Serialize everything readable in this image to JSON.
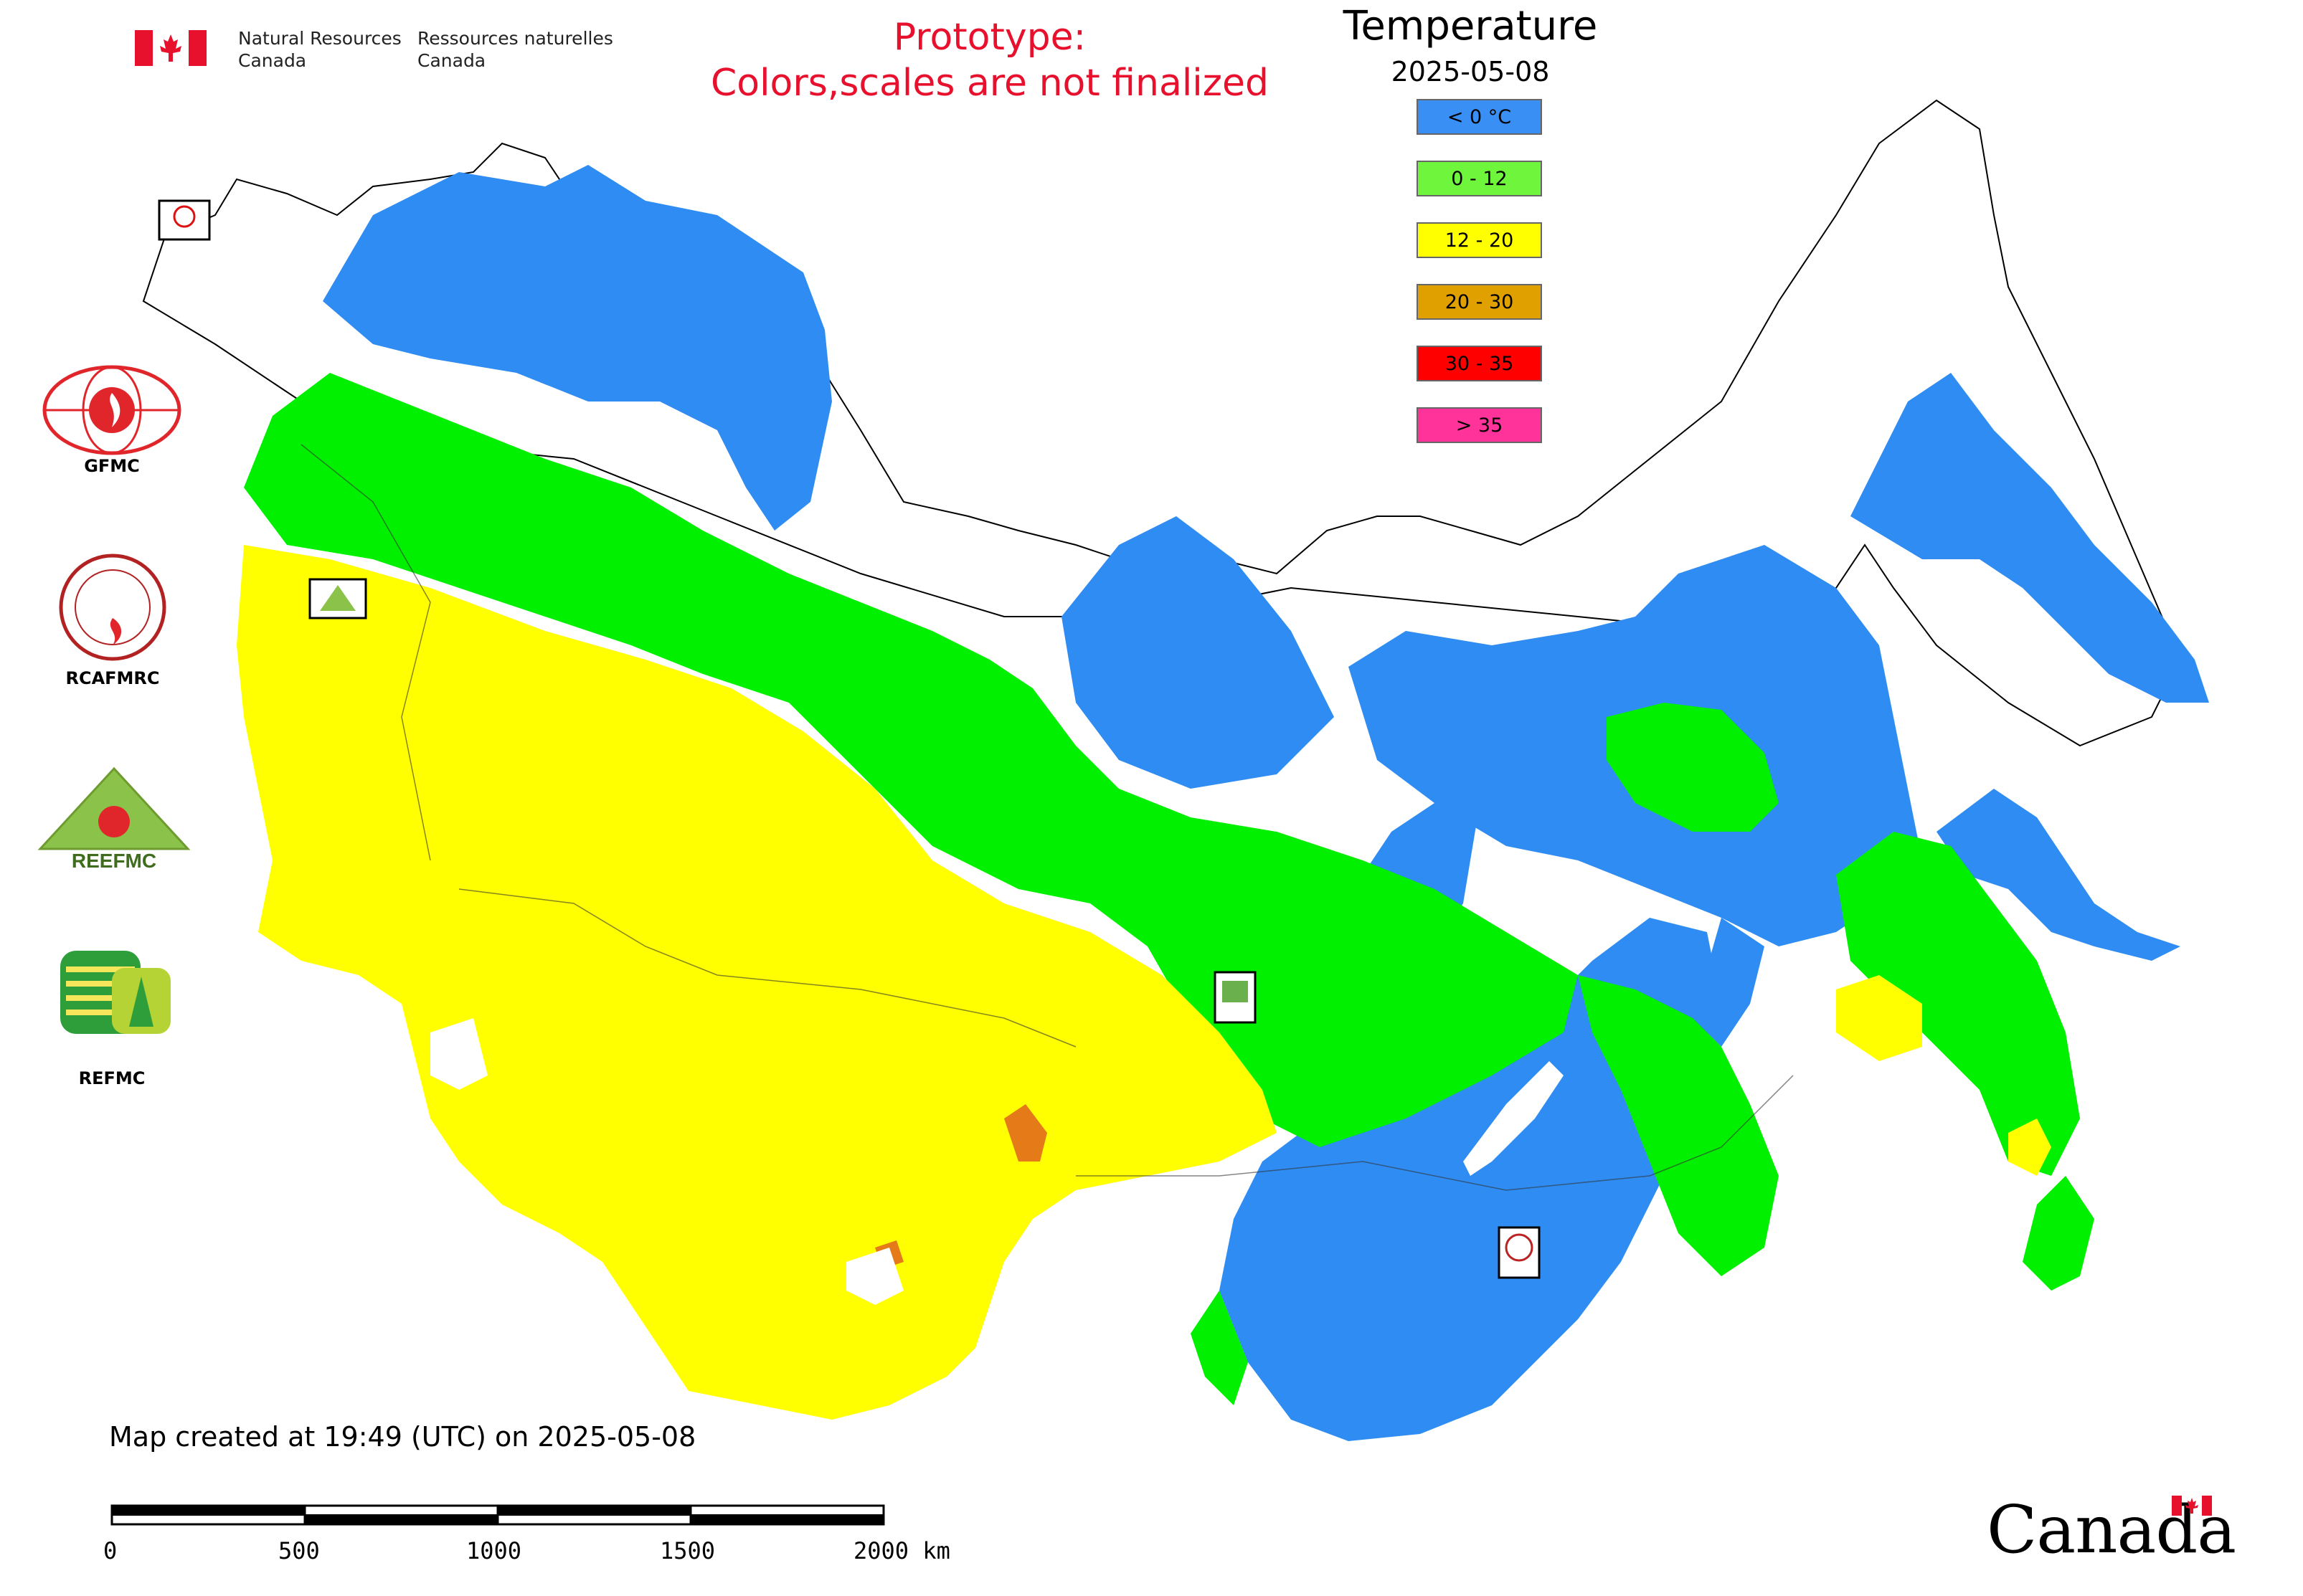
{
  "header": {
    "nrcan_en_line1": "Natural Resources",
    "nrcan_en_line2": "Canada",
    "nrcan_fr_line1": "Ressources naturelles",
    "nrcan_fr_line2": "Canada",
    "prototype_line1": "Prototype:",
    "prototype_line2": "Colors,scales are not finalized"
  },
  "legend": {
    "title": "Temperature",
    "date": "2025-05-08",
    "items": [
      {
        "label": "< 0 °C",
        "color": "#3a8ff5"
      },
      {
        "label": "0 - 12",
        "color": "#6ef53c"
      },
      {
        "label": "12 - 20",
        "color": "#ffff00"
      },
      {
        "label": "20 - 30",
        "color": "#e0a000"
      },
      {
        "label": "30 - 35",
        "color": "#ff0000"
      },
      {
        "label": "> 35",
        "color": "#ff3399"
      }
    ]
  },
  "colors": {
    "cold": "#2f8cf2",
    "cool": "#00f000",
    "mild": "#ffff00",
    "warm": "#e57a18",
    "coast": "#000000"
  },
  "logos": [
    {
      "label": "GFMC",
      "icon": "gfmc-logo-icon"
    },
    {
      "label": "RCAFMRC",
      "icon": "rcafmrc-logo-icon"
    },
    {
      "label": "REEFMC",
      "icon": "reefmc-logo-icon"
    },
    {
      "label": "REFMC",
      "icon": "refmc-logo-icon"
    }
  ],
  "map_markers": [
    {
      "label": "GFMC",
      "icon": "gfmc-marker-icon"
    },
    {
      "label": "REEFMC",
      "icon": "reefmc-marker-icon"
    },
    {
      "label": "REFMC",
      "icon": "refmc-marker-icon"
    },
    {
      "label": "RCAFMRC",
      "icon": "rcafmrc-marker-icon"
    }
  ],
  "footer": {
    "created": "Map created at 19:49 (UTC) on 2025-05-08",
    "scale_labels": [
      "0",
      "500",
      "1000",
      "1500",
      "2000 km"
    ],
    "wordmark": "Canada"
  }
}
